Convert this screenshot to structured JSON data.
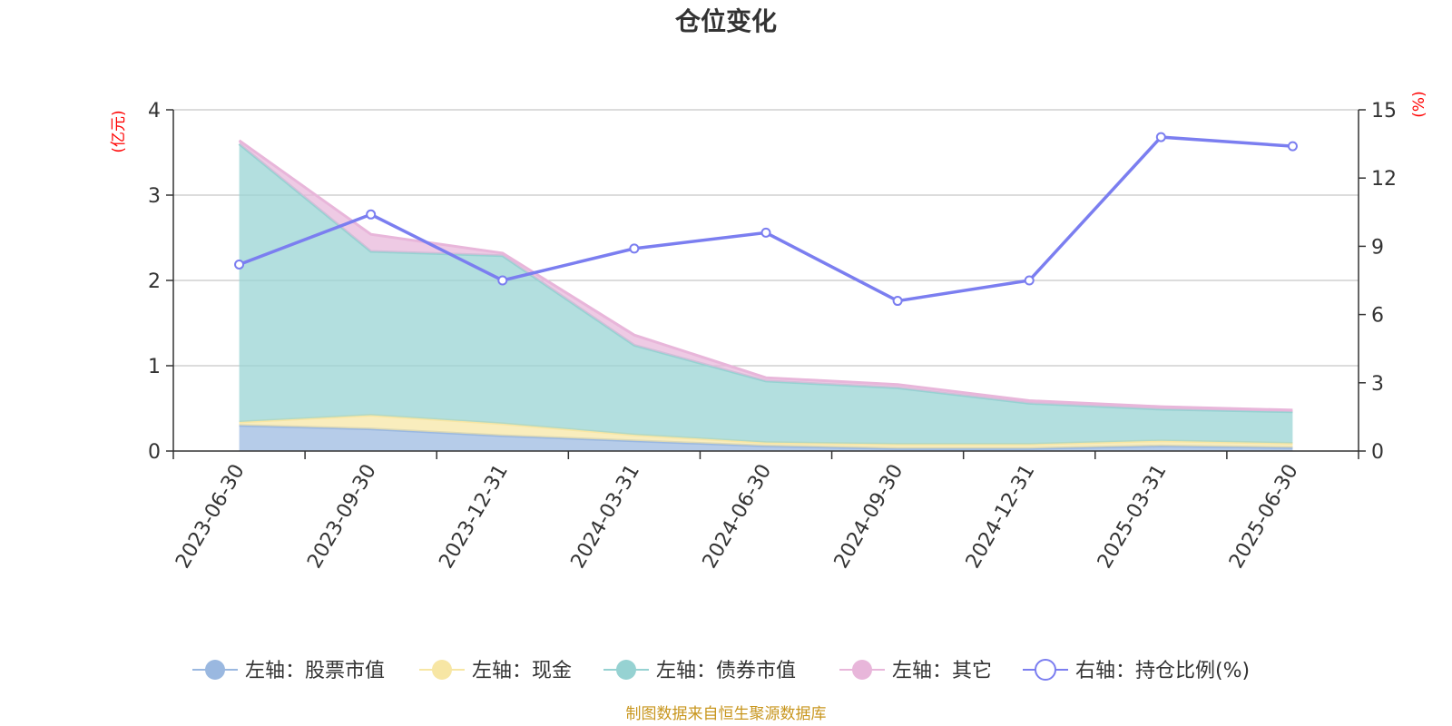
{
  "chart_data": {
    "type": "area",
    "title": "仓位变化",
    "categories": [
      "2023-06-30",
      "2023-09-30",
      "2023-12-31",
      "2024-03-31",
      "2024-06-30",
      "2024-09-30",
      "2024-12-31",
      "2025-03-31",
      "2025-06-30"
    ],
    "left_axis": {
      "unit": "(亿元)",
      "ylim": [
        0,
        4
      ],
      "ticks": [
        "0",
        "1",
        "2",
        "3",
        "4"
      ]
    },
    "right_axis": {
      "unit": "(%)",
      "ylim": [
        0,
        15
      ],
      "ticks": [
        "0",
        "3",
        "6",
        "9",
        "12",
        "15"
      ]
    },
    "grid": true,
    "legend_position": "bottom",
    "series": [
      {
        "name": "左轴：股票市值",
        "axis": "left",
        "type": "area",
        "stack": true,
        "color": "#9ab8e0",
        "values": [
          0.3,
          0.26,
          0.18,
          0.12,
          0.06,
          0.03,
          0.03,
          0.06,
          0.04
        ]
      },
      {
        "name": "左轴：现金",
        "axis": "left",
        "type": "area",
        "stack": true,
        "color": "#f7e6a4",
        "values": [
          0.04,
          0.16,
          0.14,
          0.07,
          0.04,
          0.05,
          0.05,
          0.06,
          0.05
        ]
      },
      {
        "name": "左轴：债券市值",
        "axis": "left",
        "type": "area",
        "stack": true,
        "color": "#96d2d2",
        "values": [
          3.26,
          1.92,
          1.97,
          1.05,
          0.72,
          0.66,
          0.48,
          0.37,
          0.37
        ]
      },
      {
        "name": "左轴：其它",
        "axis": "left",
        "type": "area",
        "stack": true,
        "color": "#e8b6da",
        "values": [
          0.04,
          0.2,
          0.03,
          0.12,
          0.04,
          0.04,
          0.03,
          0.03,
          0.02
        ]
      },
      {
        "name": "右轴：持仓比例(%)",
        "axis": "right",
        "type": "line",
        "color": "#7b7ef0",
        "values": [
          8.2,
          10.4,
          7.5,
          8.9,
          9.6,
          6.6,
          7.5,
          13.8,
          13.4
        ]
      }
    ]
  },
  "source_note": "制图数据来自恒生聚源数据库"
}
